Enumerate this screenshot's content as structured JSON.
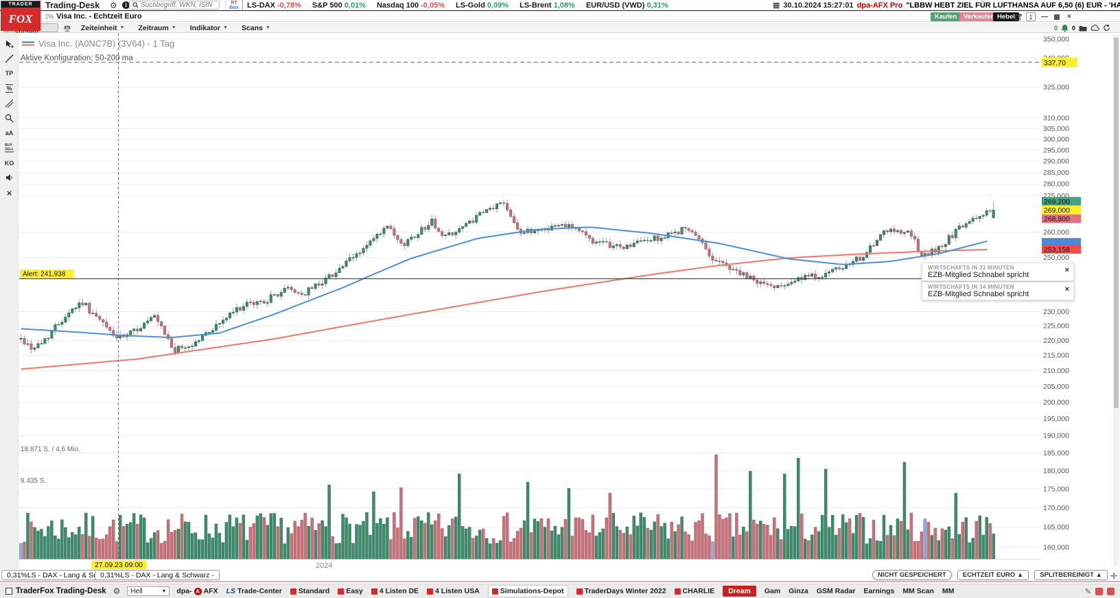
{
  "top_bar": {
    "app_title": "Trading-Desk",
    "search_placeholder": "Suchbegriff, WKN, ISIN",
    "rt_box": "RT Box",
    "quotes": [
      {
        "label": "LS-DAX",
        "value": "-0,78%",
        "dir": "down"
      },
      {
        "label": "S&P 500",
        "value": "0,01%",
        "dir": "up"
      },
      {
        "label": "Nasdaq 100",
        "value": "-0,05%",
        "dir": "down"
      },
      {
        "label": "LS-Gold",
        "value": "0,09%",
        "dir": "up"
      },
      {
        "label": "LS-Brent",
        "value": "1,08%",
        "dir": "up"
      },
      {
        "label": "EUR/USD (VWD)",
        "value": "0,31%",
        "dir": "up"
      }
    ],
    "news_time": "30.10.2024 15:27:01",
    "news_source": "dpa-AFX Pro",
    "news_headline": "\"LBBW HEBT ZIEL FÜR LUFTHANSA AUF 6,50 (6) EUR - 'HALTEN'",
    "logo_line1": "TRADER",
    "logo_line2": "FOX"
  },
  "window_bar": {
    "title": "Visa Inc. - Echtzeit Euro",
    "buy_label": "Kaufen",
    "sell_label": "Verkaufen",
    "lever_label": "Hebel",
    "window_count": "1"
  },
  "chart_toolbar": {
    "search_label": "Aktie suchen",
    "menus": [
      "Zeiteinheit",
      "Zeitraum",
      "Indikator",
      "Scans"
    ],
    "bell_count": "0",
    "folder_count": "0"
  },
  "side_tools": [
    {
      "name": "cursor-tool",
      "label": ""
    },
    {
      "name": "trendline-tool",
      "label": ""
    },
    {
      "name": "tp-tool",
      "label": "TP"
    },
    {
      "name": "percent-tool",
      "label": "%"
    },
    {
      "name": "parallel-lines-tool",
      "label": ""
    },
    {
      "name": "zoom-tool",
      "label": ""
    },
    {
      "name": "text-size-tool",
      "label": "aA"
    },
    {
      "name": "buy-sell-tool",
      "label": "BUY|SELL"
    },
    {
      "name": "ko-tool",
      "label": "KO"
    },
    {
      "name": "audio-tool",
      "label": ""
    },
    {
      "name": "close-tool",
      "label": "×"
    }
  ],
  "chart": {
    "legend_title": "Visa Inc. (A0NC7B) (3V64) - 1 Tag",
    "config_label": "Aktive Konfiguration: 50-200 ma",
    "news_popups": [
      {
        "title": "WIRTSCHAFTS IN 33 MINUTEN",
        "text": "EZB-Mitglied Schnabel spricht"
      },
      {
        "title": "WIRTSCHAFTS IN 34 MINUTEN",
        "text": "EZB-Mitglied Schnabel spricht"
      }
    ]
  },
  "chart_data": {
    "type": "candlestick",
    "title": "Visa Inc. (A0NC7B) (3V64) - 1 Tag",
    "y_unit": "EUR",
    "log_scale": true,
    "y_tick_min": 160,
    "y_tick_max": 350,
    "y_tick_step": 5,
    "y_ticks_hidden": [
      345,
      335,
      330,
      320,
      315,
      270,
      265,
      255,
      245,
      240,
      235
    ],
    "x_start_label": "27.09.23 09:00",
    "x_year_label": "2024",
    "marker_x_frac": 0.1,
    "candles": {
      "count": 285,
      "seed": 42,
      "close_anchors": [
        [
          0,
          220.5
        ],
        [
          0.011,
          217.5
        ],
        [
          0.021,
          219
        ],
        [
          0.049,
          230
        ],
        [
          0.063,
          233.5
        ],
        [
          0.077,
          228
        ],
        [
          0.1,
          220.5
        ],
        [
          0.109,
          221.5
        ],
        [
          0.137,
          228
        ],
        [
          0.158,
          216.5
        ],
        [
          0.176,
          218.5
        ],
        [
          0.225,
          231.5
        ],
        [
          0.252,
          234
        ],
        [
          0.275,
          238.5
        ],
        [
          0.289,
          236
        ],
        [
          0.318,
          243
        ],
        [
          0.345,
          251
        ],
        [
          0.377,
          262
        ],
        [
          0.391,
          254.5
        ],
        [
          0.423,
          264.5
        ],
        [
          0.433,
          258
        ],
        [
          0.455,
          262
        ],
        [
          0.472,
          267
        ],
        [
          0.496,
          272.5
        ],
        [
          0.514,
          259.5
        ],
        [
          0.533,
          261
        ],
        [
          0.563,
          263.5
        ],
        [
          0.592,
          255.5
        ],
        [
          0.62,
          254
        ],
        [
          0.64,
          256.5
        ],
        [
          0.662,
          258
        ],
        [
          0.683,
          261.5
        ],
        [
          0.7,
          256
        ],
        [
          0.711,
          249.5
        ],
        [
          0.73,
          246
        ],
        [
          0.746,
          242.5
        ],
        [
          0.771,
          239
        ],
        [
          0.79,
          241
        ],
        [
          0.81,
          242.5
        ],
        [
          0.83,
          244
        ],
        [
          0.852,
          247
        ],
        [
          0.87,
          252
        ],
        [
          0.887,
          259.5
        ],
        [
          0.9,
          261
        ],
        [
          0.915,
          259.5
        ],
        [
          0.926,
          250
        ],
        [
          0.945,
          254
        ],
        [
          0.965,
          261.5
        ],
        [
          0.98,
          265
        ],
        [
          0.993,
          268.5
        ],
        [
          1,
          269
        ]
      ],
      "last_candle": {
        "open": 265.8,
        "close": 269.0,
        "high": 272.5,
        "low": 265.3
      }
    },
    "ma50": {
      "color": "#4a90d9",
      "points": [
        [
          0,
          224
        ],
        [
          0.06,
          222.8
        ],
        [
          0.1,
          221.8
        ],
        [
          0.155,
          221
        ],
        [
          0.204,
          222.5
        ],
        [
          0.26,
          229
        ],
        [
          0.33,
          238.5
        ],
        [
          0.4,
          249.5
        ],
        [
          0.47,
          257.5
        ],
        [
          0.53,
          261
        ],
        [
          0.585,
          262
        ],
        [
          0.648,
          259.5
        ],
        [
          0.718,
          255.5
        ],
        [
          0.789,
          249.5
        ],
        [
          0.845,
          247.3
        ],
        [
          0.894,
          248.5
        ],
        [
          0.944,
          251.5
        ],
        [
          1,
          257
        ]
      ]
    },
    "ma200": {
      "color": "#f4756b",
      "points": [
        [
          0,
          210.5
        ],
        [
          0.12,
          213.8
        ],
        [
          0.26,
          220.5
        ],
        [
          0.4,
          229
        ],
        [
          0.54,
          237.5
        ],
        [
          0.648,
          243.5
        ],
        [
          0.718,
          247
        ],
        [
          0.789,
          249.8
        ],
        [
          0.86,
          251.3
        ],
        [
          0.93,
          252.4
        ],
        [
          1,
          253.16
        ]
      ]
    },
    "volume": {
      "seed": 7,
      "base_min": 22,
      "base_range": 46,
      "spikes": [
        [
          0.317,
          108
        ],
        [
          0.363,
          98
        ],
        [
          0.391,
          104
        ],
        [
          0.451,
          124
        ],
        [
          0.521,
          112
        ],
        [
          0.563,
          103
        ],
        [
          0.604,
          96
        ],
        [
          0.716,
          152
        ],
        [
          0.75,
          128
        ],
        [
          0.784,
          124
        ],
        [
          0.8,
          147
        ],
        [
          0.826,
          131
        ],
        [
          0.908,
          141
        ],
        [
          0.961,
          96
        ]
      ],
      "blue_bars": [
        0.0,
        0.711,
        0.931
      ],
      "max_label": "18.871 S. / 4,6 Mio.",
      "half_label": "9.435 S."
    },
    "levels": {
      "target": {
        "price": 337.7,
        "label": "337,70"
      },
      "alert": {
        "price": 241.938,
        "label": "Alert: 241,938"
      }
    },
    "quote_boxes": {
      "bid": {
        "label": "269,200",
        "color": "#46a183"
      },
      "last": {
        "label": "269,000",
        "color": "#fdee30"
      },
      "ask": {
        "label": "268,800",
        "color": "#e0737f"
      },
      "ma50_box": {
        "label": "",
        "color": "#4f86d8"
      },
      "ma200_box": {
        "label": "253,158",
        "color": "#ef4e4e"
      }
    },
    "colors": {
      "up_fill": "#3d8b6b",
      "up_stroke": "#27654c",
      "down_fill": "#c67179",
      "down_stroke": "#9e545c",
      "wick": "#9aa0a6",
      "grid": "#ececec",
      "axis_text": "#555",
      "blue_bar": "#93a8e8",
      "yellow": "#fdee30"
    }
  },
  "footer": {
    "tabs": [
      "0,31%LS - DAX - Lang & Schwarz -",
      "0,31%LS - DAX - Lang & Schwarz -"
    ],
    "status_buttons": [
      {
        "label": "NICHT GESPEICHERT",
        "style": "warn"
      },
      {
        "label": "ECHTZEIT EURO ▲",
        "style": ""
      },
      {
        "label": "SPLITBEREINIGT ▲",
        "style": ""
      }
    ]
  },
  "taskbar": {
    "app_label": "TraderFox Trading-Desk",
    "theme_select": "Hell",
    "items": [
      {
        "label": "dpa-AFX",
        "type": "dpa"
      },
      {
        "label": "LS Trade-Center",
        "type": "ls"
      },
      {
        "label": "Standard",
        "icon": true
      },
      {
        "label": "Easy",
        "icon": true
      },
      {
        "label": "4 Listen DE",
        "icon": true
      },
      {
        "label": "4 Listen USA",
        "icon": true
      },
      {
        "label": "Simulations-Depot",
        "icon": true,
        "active": true
      },
      {
        "label": "TraderDays Winter 2022",
        "icon": true
      },
      {
        "label": "CHARLIE",
        "icon": true
      },
      {
        "label": "Dream",
        "type": "hot"
      },
      {
        "label": "Gam"
      },
      {
        "label": "Ginza"
      },
      {
        "label": "GSM Radar"
      },
      {
        "label": "Earnings"
      },
      {
        "label": "MM Scan"
      },
      {
        "label": "MM"
      }
    ]
  }
}
